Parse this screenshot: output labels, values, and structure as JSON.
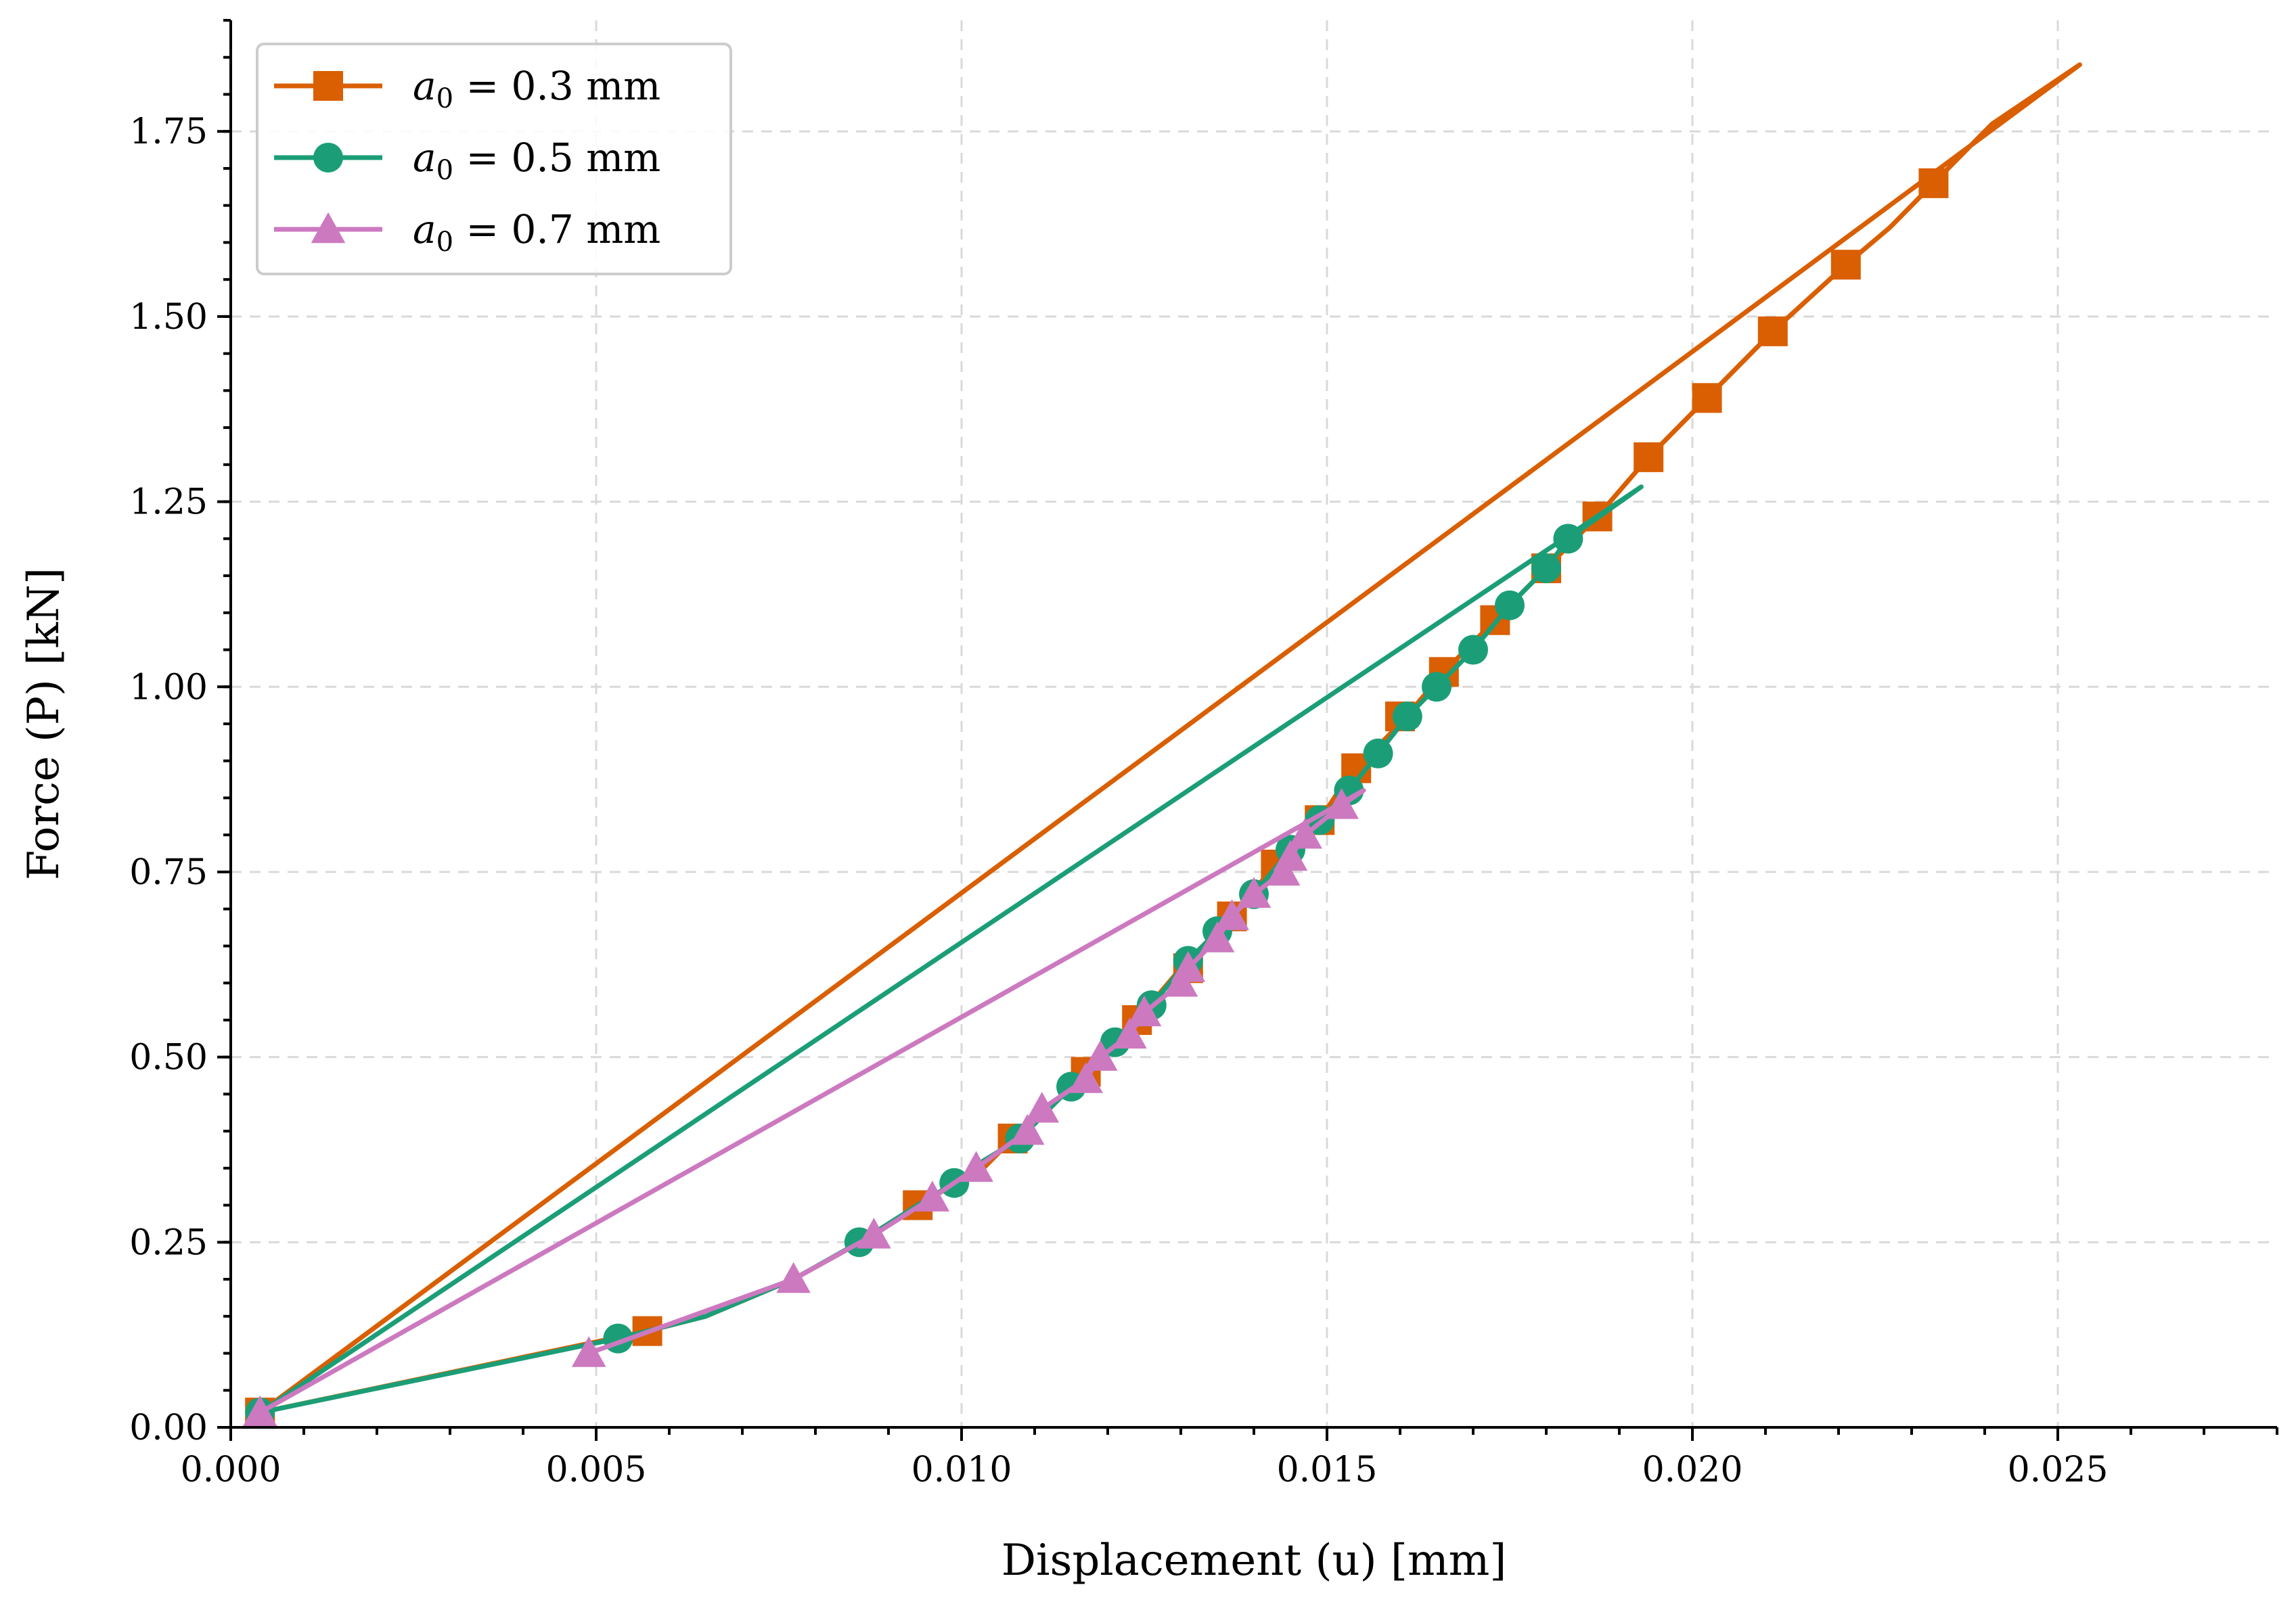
{
  "chart_data": {
    "type": "line",
    "title": "",
    "xlabel": "Displacement (u) [mm]",
    "ylabel": "Force (P) [kN]",
    "xlim": [
      0.0,
      0.028
    ],
    "ylim": [
      0.0,
      1.9
    ],
    "x_ticks": [
      0.0,
      0.005,
      0.01,
      0.015,
      0.02,
      0.025
    ],
    "x_tick_labels": [
      "0.000",
      "0.005",
      "0.010",
      "0.015",
      "0.020",
      "0.025"
    ],
    "y_ticks": [
      0.0,
      0.25,
      0.5,
      0.75,
      1.0,
      1.25,
      1.5,
      1.75
    ],
    "y_tick_labels": [
      "0.00",
      "0.25",
      "0.50",
      "0.75",
      "1.00",
      "1.25",
      "1.50",
      "1.75"
    ],
    "grid": true,
    "legend_position": "top-left",
    "series": [
      {
        "name": "a_0 = 0.3 mm",
        "label_var": "a",
        "label_sub": "0",
        "label_rest": " = 0.3 mm",
        "color": "#d95f02",
        "marker": "square",
        "line": [
          [
            0.0004,
            0.02
          ],
          [
            0.0057,
            0.13
          ],
          [
            0.0065,
            0.15
          ],
          [
            0.0077,
            0.2
          ],
          [
            0.0088,
            0.26
          ],
          [
            0.0094,
            0.3
          ],
          [
            0.0103,
            0.35
          ],
          [
            0.0107,
            0.39
          ],
          [
            0.0111,
            0.42
          ],
          [
            0.0117,
            0.48
          ],
          [
            0.0121,
            0.52
          ],
          [
            0.0124,
            0.55
          ],
          [
            0.013,
            0.62
          ],
          [
            0.0134,
            0.66
          ],
          [
            0.0137,
            0.69
          ],
          [
            0.0143,
            0.76
          ],
          [
            0.0149,
            0.82
          ],
          [
            0.0153,
            0.88
          ],
          [
            0.016,
            0.95
          ],
          [
            0.0166,
            1.02
          ],
          [
            0.0173,
            1.09
          ],
          [
            0.018,
            1.16
          ],
          [
            0.0187,
            1.23
          ],
          [
            0.0194,
            1.31
          ],
          [
            0.0202,
            1.39
          ],
          [
            0.0211,
            1.48
          ],
          [
            0.0221,
            1.57
          ],
          [
            0.0227,
            1.62
          ],
          [
            0.0233,
            1.68
          ],
          [
            0.0241,
            1.76
          ],
          [
            0.0253,
            1.84
          ],
          [
            0.0004,
            0.02
          ]
        ],
        "markers": [
          [
            0.0004,
            0.02
          ],
          [
            0.0057,
            0.13
          ],
          [
            0.0094,
            0.3
          ],
          [
            0.0107,
            0.39
          ],
          [
            0.0117,
            0.48
          ],
          [
            0.0124,
            0.55
          ],
          [
            0.0131,
            0.62
          ],
          [
            0.0137,
            0.69
          ],
          [
            0.0143,
            0.76
          ],
          [
            0.0149,
            0.82
          ],
          [
            0.0154,
            0.89
          ],
          [
            0.016,
            0.96
          ],
          [
            0.0166,
            1.02
          ],
          [
            0.0173,
            1.09
          ],
          [
            0.018,
            1.16
          ],
          [
            0.0187,
            1.23
          ],
          [
            0.0194,
            1.31
          ],
          [
            0.0202,
            1.39
          ],
          [
            0.0211,
            1.48
          ],
          [
            0.0221,
            1.57
          ],
          [
            0.0233,
            1.68
          ]
        ]
      },
      {
        "name": "a_0 = 0.5 mm",
        "label_var": "a",
        "label_sub": "0",
        "label_rest": " = 0.5 mm",
        "color": "#1b9e77",
        "marker": "circle",
        "line": [
          [
            0.0004,
            0.02
          ],
          [
            0.0053,
            0.12
          ],
          [
            0.0065,
            0.15
          ],
          [
            0.0077,
            0.2
          ],
          [
            0.0086,
            0.25
          ],
          [
            0.0094,
            0.3
          ],
          [
            0.0099,
            0.33
          ],
          [
            0.0103,
            0.36
          ],
          [
            0.0108,
            0.39
          ],
          [
            0.0115,
            0.46
          ],
          [
            0.0121,
            0.52
          ],
          [
            0.0126,
            0.57
          ],
          [
            0.0131,
            0.63
          ],
          [
            0.0135,
            0.67
          ],
          [
            0.014,
            0.72
          ],
          [
            0.0145,
            0.78
          ],
          [
            0.0149,
            0.82
          ],
          [
            0.0153,
            0.86
          ],
          [
            0.0157,
            0.91
          ],
          [
            0.0161,
            0.96
          ],
          [
            0.0165,
            1.0
          ],
          [
            0.017,
            1.05
          ],
          [
            0.0175,
            1.11
          ],
          [
            0.018,
            1.16
          ],
          [
            0.0183,
            1.2
          ],
          [
            0.0193,
            1.27
          ],
          [
            0.0004,
            0.02
          ]
        ],
        "markers": [
          [
            0.0004,
            0.02
          ],
          [
            0.0053,
            0.12
          ],
          [
            0.0086,
            0.25
          ],
          [
            0.0099,
            0.33
          ],
          [
            0.0108,
            0.39
          ],
          [
            0.0115,
            0.46
          ],
          [
            0.0121,
            0.52
          ],
          [
            0.0126,
            0.57
          ],
          [
            0.0131,
            0.63
          ],
          [
            0.0135,
            0.67
          ],
          [
            0.014,
            0.72
          ],
          [
            0.0145,
            0.78
          ],
          [
            0.0149,
            0.82
          ],
          [
            0.0153,
            0.86
          ],
          [
            0.0157,
            0.91
          ],
          [
            0.0161,
            0.96
          ],
          [
            0.0165,
            1.0
          ],
          [
            0.017,
            1.05
          ],
          [
            0.0175,
            1.11
          ],
          [
            0.018,
            1.16
          ],
          [
            0.0183,
            1.2
          ]
        ]
      },
      {
        "name": "a_0 = 0.7 mm",
        "label_var": "a",
        "label_sub": "0",
        "label_rest": " = 0.7 mm",
        "color": "#cc79c0",
        "marker": "triangle",
        "line": [
          [
            0.0049,
            0.1
          ],
          [
            0.0077,
            0.2
          ],
          [
            0.0088,
            0.26
          ],
          [
            0.0096,
            0.31
          ],
          [
            0.0102,
            0.35
          ],
          [
            0.0109,
            0.4
          ],
          [
            0.0111,
            0.43
          ],
          [
            0.0117,
            0.47
          ],
          [
            0.0119,
            0.5
          ],
          [
            0.0123,
            0.53
          ],
          [
            0.0125,
            0.56
          ],
          [
            0.013,
            0.6
          ],
          [
            0.0131,
            0.62
          ],
          [
            0.0135,
            0.66
          ],
          [
            0.0137,
            0.69
          ],
          [
            0.014,
            0.72
          ],
          [
            0.0144,
            0.75
          ],
          [
            0.0145,
            0.77
          ],
          [
            0.0147,
            0.8
          ],
          [
            0.0152,
            0.84
          ],
          [
            0.0155,
            0.86
          ],
          [
            0.0004,
            0.02
          ]
        ],
        "markers": [
          [
            0.0004,
            0.02
          ],
          [
            0.0049,
            0.1
          ],
          [
            0.0077,
            0.2
          ],
          [
            0.0088,
            0.26
          ],
          [
            0.0096,
            0.31
          ],
          [
            0.0102,
            0.35
          ],
          [
            0.0109,
            0.4
          ],
          [
            0.0111,
            0.43
          ],
          [
            0.0117,
            0.47
          ],
          [
            0.0119,
            0.5
          ],
          [
            0.0123,
            0.53
          ],
          [
            0.0125,
            0.56
          ],
          [
            0.013,
            0.6
          ],
          [
            0.0131,
            0.62
          ],
          [
            0.0135,
            0.66
          ],
          [
            0.0137,
            0.69
          ],
          [
            0.014,
            0.72
          ],
          [
            0.0144,
            0.75
          ],
          [
            0.0145,
            0.77
          ],
          [
            0.0147,
            0.8
          ],
          [
            0.0152,
            0.84
          ]
        ]
      }
    ]
  }
}
